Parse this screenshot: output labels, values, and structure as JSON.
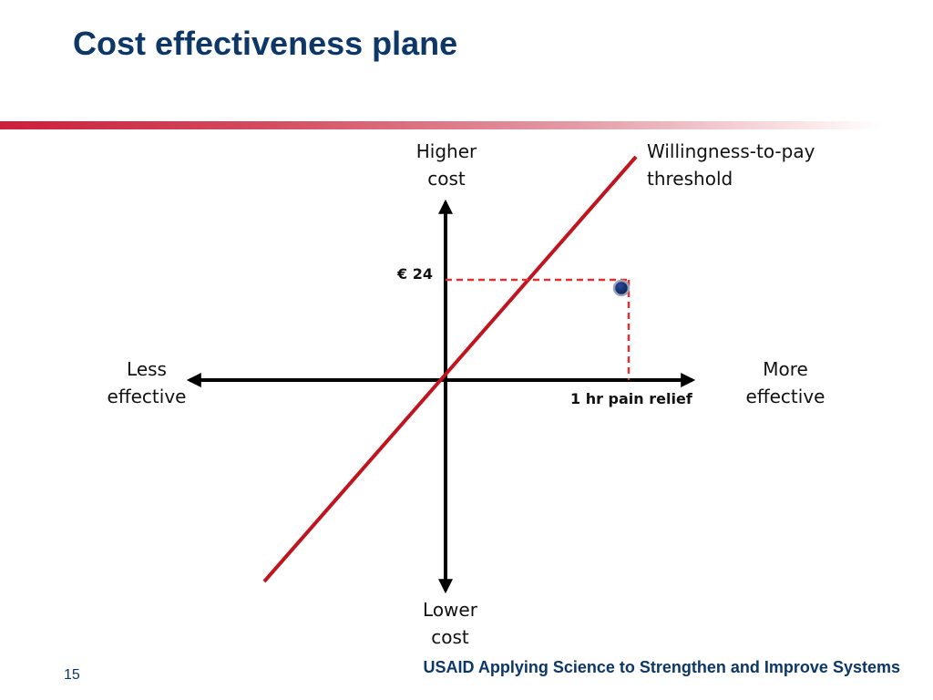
{
  "slide": {
    "title": "Cost effectiveness plane",
    "page_number": "15",
    "footer": "USAID Applying Science to Strengthen and Improve Systems"
  },
  "diagram": {
    "y_axis_top": [
      "Higher",
      "cost"
    ],
    "y_axis_bottom": [
      "Lower",
      "cost"
    ],
    "x_axis_left": [
      "Less",
      "effective"
    ],
    "x_axis_right": [
      "More",
      "effective"
    ],
    "threshold_label": [
      "Willingness-to-pay",
      "threshold"
    ],
    "cost_marker": "€ 24",
    "effect_marker": "1 hr pain relief"
  },
  "colors": {
    "title": "#0d3767",
    "threshold_line": "#c0141e",
    "dashed": "#e03030",
    "point": "#0d2a66"
  }
}
